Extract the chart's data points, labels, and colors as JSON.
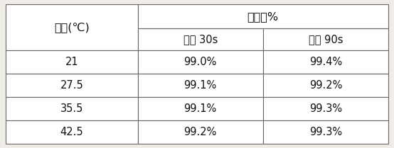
{
  "col1_header": "温度(℃)",
  "col2_header": "反萝率%",
  "col2_sub1": "反萝 30s",
  "col2_sub2": "反萝 90s",
  "rows": [
    [
      "21",
      "99.0%",
      "99.4%"
    ],
    [
      "27.5",
      "99.1%",
      "99.2%"
    ],
    [
      "35.5",
      "99.1%",
      "99.3%"
    ],
    [
      "42.5",
      "99.2%",
      "99.3%"
    ]
  ],
  "bg_color": "#f0ede8",
  "border_color": "#666666",
  "text_color": "#111111",
  "font_size": 10.5,
  "header_font_size": 11.5
}
